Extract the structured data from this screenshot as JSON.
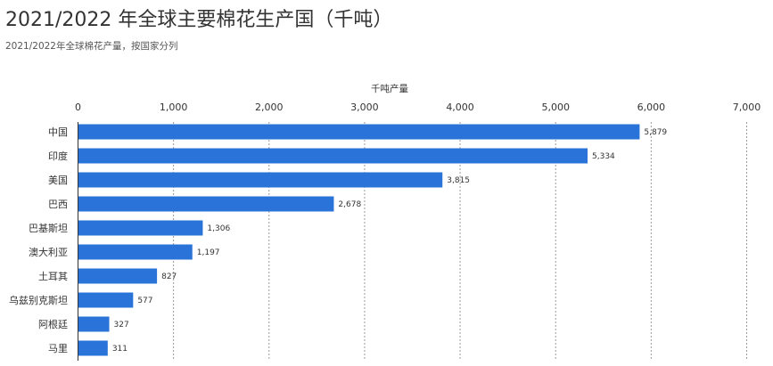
{
  "header": {
    "title": "2021/2022 年全球主要棉花生产国（千吨）",
    "subtitle": "2021/2022年全球棉花产量，按国家分列"
  },
  "chart_data": {
    "type": "bar",
    "orientation": "horizontal",
    "title": "2021/2022 年全球主要棉花生产国（千吨）",
    "subtitle": "2021/2022年全球棉花产量，按国家分列",
    "xlabel": "千吨产量",
    "ylabel": "",
    "xlim": [
      0,
      7000
    ],
    "xticks": [
      0,
      1000,
      2000,
      3000,
      4000,
      5000,
      6000,
      7000
    ],
    "xtick_labels": [
      "0",
      "1,000",
      "2,000",
      "3,000",
      "4,000",
      "5,000",
      "6,000",
      "7,000"
    ],
    "categories": [
      "中国",
      "印度",
      "美国",
      "巴西",
      "巴基斯坦",
      "澳大利亚",
      "土耳其",
      "乌兹别克斯坦",
      "阿根廷",
      "马里"
    ],
    "values": [
      5879,
      5334,
      3815,
      2678,
      1306,
      1197,
      827,
      577,
      327,
      311
    ],
    "value_labels": [
      "5,879",
      "5,334",
      "3,815",
      "2,678",
      "1,306",
      "1,197",
      "827",
      "577",
      "327",
      "311"
    ],
    "bar_color": "#2a74d9",
    "grid": true
  }
}
